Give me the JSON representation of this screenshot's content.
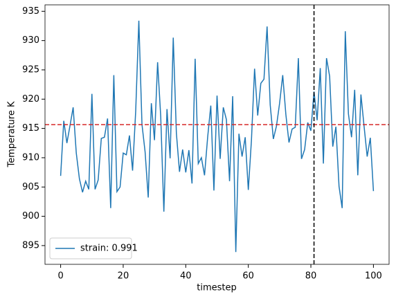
{
  "chart_data": {
    "type": "line",
    "xlabel": "timestep",
    "ylabel": "Temperature K",
    "x": [
      0,
      1,
      2,
      3,
      4,
      5,
      6,
      7,
      8,
      9,
      10,
      11,
      12,
      13,
      14,
      15,
      16,
      17,
      18,
      19,
      20,
      21,
      22,
      23,
      24,
      25,
      26,
      27,
      28,
      29,
      30,
      31,
      32,
      33,
      34,
      35,
      36,
      37,
      38,
      39,
      40,
      41,
      42,
      43,
      44,
      45,
      46,
      47,
      48,
      49,
      50,
      51,
      52,
      53,
      54,
      55,
      56,
      57,
      58,
      59,
      60,
      61,
      62,
      63,
      64,
      65,
      66,
      67,
      68,
      69,
      70,
      71,
      72,
      73,
      74,
      75,
      76,
      77,
      78,
      79,
      80,
      81,
      82,
      83,
      84,
      85,
      86,
      87,
      88,
      89,
      90,
      91,
      92,
      93,
      94,
      95,
      96,
      97,
      98,
      99,
      100
    ],
    "series": [
      {
        "name": "strain: 0.991",
        "color": "#1f77b4",
        "values": [
          906.9,
          916.3,
          912.5,
          915.5,
          918.6,
          910.8,
          906.4,
          904.1,
          906.0,
          904.6,
          920.9,
          904.6,
          906.2,
          913.3,
          913.5,
          916.7,
          901.4,
          924.1,
          904.2,
          905.0,
          910.8,
          910.5,
          913.8,
          907.8,
          918.0,
          933.4,
          915.7,
          911.0,
          903.2,
          919.3,
          913.0,
          926.3,
          917.0,
          900.8,
          918.3,
          909.9,
          930.5,
          914.2,
          907.6,
          911.4,
          907.5,
          911.3,
          905.6,
          926.9,
          909.0,
          910.0,
          907.0,
          913.5,
          918.9,
          904.4,
          920.6,
          909.8,
          918.6,
          916.5,
          906.0,
          920.5,
          893.9,
          914.1,
          910.2,
          913.5,
          904.5,
          913.0,
          925.2,
          917.2,
          922.7,
          923.4,
          932.4,
          919.0,
          913.2,
          915.4,
          919.3,
          924.1,
          917.4,
          912.6,
          914.9,
          915.2,
          927.0,
          909.8,
          911.4,
          916.0,
          914.6,
          921.3,
          916.4,
          925.3,
          909.0,
          927.0,
          923.9,
          911.9,
          915.3,
          905.1,
          901.4,
          931.6,
          917.5,
          913.5,
          921.6,
          907.0,
          920.8,
          915.4,
          910.2,
          913.4,
          904.3
        ]
      }
    ],
    "hline": {
      "value": 915.65,
      "color": "#d62728"
    },
    "vline": {
      "value": 81,
      "color": "#000000"
    },
    "xlim": [
      -5,
      105
    ],
    "ylim": [
      891.8,
      936.1
    ],
    "xticks": [
      0,
      20,
      40,
      60,
      80,
      100
    ],
    "yticks": [
      895,
      900,
      905,
      910,
      915,
      920,
      925,
      930,
      935
    ],
    "legend": "lower left"
  }
}
